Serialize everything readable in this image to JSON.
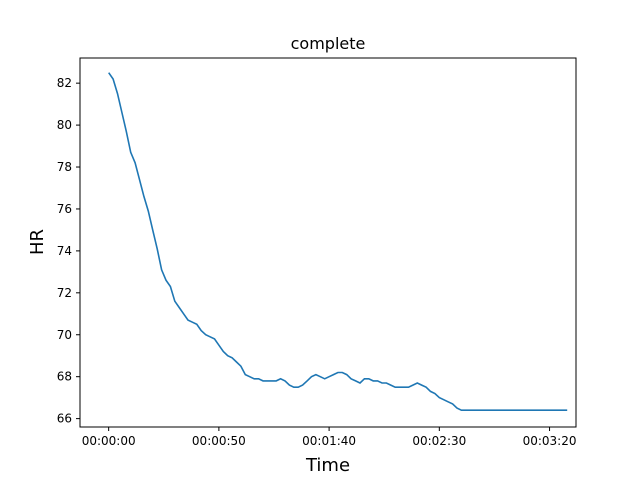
{
  "chart_data": {
    "type": "line",
    "title": "complete",
    "xlabel": "Time",
    "ylabel": "HR",
    "x_unit": "seconds (mm:ss elapsed)",
    "xlim": [
      -13,
      212
    ],
    "ylim": [
      65.6,
      83.2
    ],
    "grid": false,
    "legend": "none",
    "x_ticks": [
      {
        "value": 0,
        "label": "00:00:00"
      },
      {
        "value": 50,
        "label": "00:00:50"
      },
      {
        "value": 100,
        "label": "00:01:40"
      },
      {
        "value": 150,
        "label": "00:02:30"
      },
      {
        "value": 200,
        "label": "00:03:20"
      }
    ],
    "y_ticks": [
      {
        "value": 66,
        "label": "66"
      },
      {
        "value": 68,
        "label": "68"
      },
      {
        "value": 70,
        "label": "70"
      },
      {
        "value": 72,
        "label": "72"
      },
      {
        "value": 74,
        "label": "74"
      },
      {
        "value": 76,
        "label": "76"
      },
      {
        "value": 78,
        "label": "78"
      },
      {
        "value": 80,
        "label": "80"
      },
      {
        "value": 82,
        "label": "82"
      }
    ],
    "series": [
      {
        "color": "#1f77b4",
        "x": [
          0,
          2,
          4,
          6,
          8,
          10,
          12,
          14,
          16,
          18,
          20,
          22,
          24,
          26,
          28,
          30,
          32,
          34,
          36,
          38,
          40,
          42,
          44,
          46,
          48,
          50,
          52,
          54,
          56,
          58,
          60,
          62,
          64,
          66,
          68,
          70,
          72,
          74,
          76,
          78,
          80,
          82,
          84,
          86,
          88,
          90,
          92,
          94,
          96,
          98,
          100,
          102,
          104,
          106,
          108,
          110,
          112,
          114,
          116,
          118,
          120,
          122,
          124,
          126,
          128,
          130,
          132,
          134,
          136,
          138,
          140,
          142,
          144,
          146,
          148,
          150,
          152,
          154,
          156,
          158,
          160,
          162,
          164,
          166,
          168,
          170,
          172,
          174,
          176,
          178,
          180,
          182,
          184,
          186,
          188,
          190,
          192,
          194,
          196,
          198,
          200,
          202,
          204,
          206,
          208
        ],
        "values": [
          82.5,
          82.2,
          81.5,
          80.6,
          79.7,
          78.7,
          78.2,
          77.4,
          76.6,
          75.9,
          75.0,
          74.1,
          73.1,
          72.6,
          72.3,
          71.6,
          71.3,
          71.0,
          70.7,
          70.6,
          70.5,
          70.2,
          70.0,
          69.9,
          69.8,
          69.5,
          69.2,
          69.0,
          68.9,
          68.7,
          68.5,
          68.1,
          68.0,
          67.9,
          67.9,
          67.8,
          67.8,
          67.8,
          67.8,
          67.9,
          67.8,
          67.6,
          67.5,
          67.5,
          67.6,
          67.8,
          68.0,
          68.1,
          68.0,
          67.9,
          68.0,
          68.1,
          68.2,
          68.2,
          68.1,
          67.9,
          67.8,
          67.7,
          67.9,
          67.9,
          67.8,
          67.8,
          67.7,
          67.7,
          67.6,
          67.5,
          67.5,
          67.5,
          67.5,
          67.6,
          67.7,
          67.6,
          67.5,
          67.3,
          67.2,
          67.0,
          66.9,
          66.8,
          66.7,
          66.5,
          66.4,
          66.4,
          66.4,
          66.4,
          66.4,
          66.4,
          66.4,
          66.4,
          66.4,
          66.4,
          66.4,
          66.4,
          66.4,
          66.4,
          66.4,
          66.4,
          66.4,
          66.4,
          66.4,
          66.4,
          66.4,
          66.4,
          66.4,
          66.4,
          66.4
        ]
      }
    ]
  }
}
